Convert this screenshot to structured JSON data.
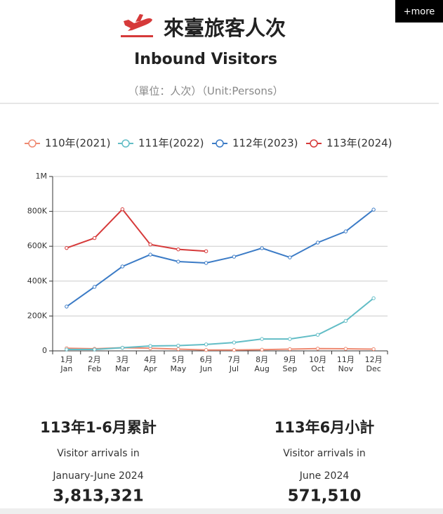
{
  "header": {
    "title": "來臺旅客人次",
    "subtitle": "Inbound Visitors",
    "unit": "（單位：人次）（Unit:Persons）",
    "more": "+more"
  },
  "chart_data": {
    "type": "line",
    "categories": [
      "1月",
      "2月",
      "3月",
      "4月",
      "5月",
      "6月",
      "7月",
      "8月",
      "9月",
      "10月",
      "11月",
      "12月"
    ],
    "categories_en": [
      "Jan",
      "Feb",
      "Mar",
      "Apr",
      "May",
      "Jun",
      "Jul",
      "Aug",
      "Sep",
      "Oct",
      "Nov",
      "Dec"
    ],
    "series": [
      {
        "name": "110年(2021)",
        "color": "#ee8a72",
        "values": [
          15000,
          12000,
          18000,
          15000,
          10000,
          5000,
          5000,
          7000,
          10000,
          13000,
          12000,
          10000
        ]
      },
      {
        "name": "111年(2022)",
        "color": "#62bdc6",
        "values": [
          8000,
          8000,
          18000,
          28000,
          30000,
          37000,
          48000,
          68000,
          68000,
          92000,
          172000,
          302000
        ]
      },
      {
        "name": "112年(2023)",
        "color": "#3b7bc6",
        "values": [
          254000,
          367000,
          484000,
          552000,
          512000,
          504000,
          540000,
          589000,
          536000,
          621000,
          685000,
          810000
        ]
      },
      {
        "name": "113年(2024)",
        "color": "#d63a3a",
        "values": [
          590000,
          647000,
          812000,
          610000,
          582000,
          571510,
          null,
          null,
          null,
          null,
          null,
          null
        ]
      }
    ],
    "ylim": [
      0,
      1000000
    ],
    "yticks": [
      0,
      {
        "value": 200000,
        "label": "200K"
      },
      {
        "value": 400000,
        "label": "400K"
      },
      {
        "value": 600000,
        "label": "600K"
      },
      {
        "value": 800000,
        "label": "800K"
      },
      {
        "value": 1000000,
        "label": "1M"
      }
    ],
    "grid": true,
    "legend": "top"
  },
  "summary": [
    {
      "title": "113年1-6月累計",
      "line1": "Visitor arrivals in",
      "line2": "January-June 2024",
      "value": "3,813,321"
    },
    {
      "title": "113年6月小計",
      "line1": "Visitor arrivals in",
      "line2": "June 2024",
      "value": "571,510"
    }
  ]
}
